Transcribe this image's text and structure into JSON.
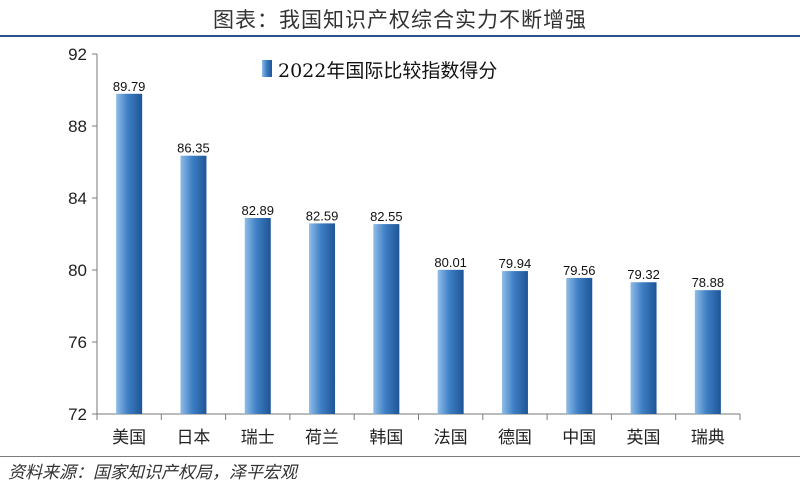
{
  "title": "图表：我国知识产权综合实力不断增强",
  "source": "资料来源：国家知识产权局，泽平宏观",
  "colors": {
    "bar": "#3f7fc4",
    "bar_light": "#8fbde8",
    "bar_dark": "#1e5597",
    "rule": "#2c4f8a"
  },
  "chart_data": {
    "type": "bar",
    "categories": [
      "美国",
      "日本",
      "瑞士",
      "荷兰",
      "韩国",
      "法国",
      "德国",
      "中国",
      "英国",
      "瑞典"
    ],
    "series": [
      {
        "name": "2022年国际比较指数得分",
        "values": [
          89.79,
          86.35,
          82.89,
          82.59,
          82.55,
          80.01,
          79.94,
          79.56,
          79.32,
          78.88
        ]
      }
    ],
    "data_labels": [
      "89.79",
      "86.35",
      "82.89",
      "82.59",
      "82.55",
      "80.01",
      "79.94",
      "79.56",
      "79.32",
      "78.88"
    ],
    "ylim": [
      72,
      92
    ],
    "yticks": [
      "72",
      "76",
      "80",
      "84",
      "88",
      "92"
    ],
    "xlabel": "",
    "ylabel": "",
    "grid": false,
    "legend_position": "top-center"
  }
}
